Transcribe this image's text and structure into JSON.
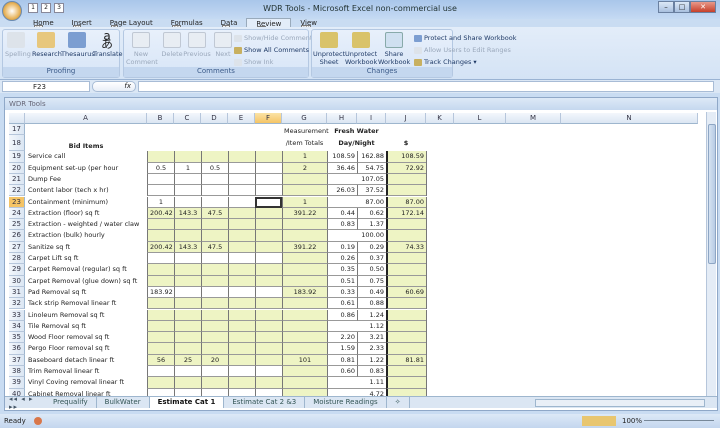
{
  "window": {
    "title": "WDR Tools - Microsoft Excel non-commercial use",
    "qat_keys": [
      "1",
      "2",
      "3"
    ],
    "office_key": "F"
  },
  "ribbon": {
    "tabs": [
      {
        "label": "Home",
        "key": "H"
      },
      {
        "label": "Insert",
        "key": "N"
      },
      {
        "label": "Page Layout",
        "key": "P"
      },
      {
        "label": "Formulas",
        "key": "M"
      },
      {
        "label": "Data",
        "key": "A"
      },
      {
        "label": "Review",
        "key": "R"
      },
      {
        "label": "View",
        "key": "W"
      }
    ],
    "active_tab": "Review",
    "groups": {
      "proofing": {
        "label": "Proofing",
        "buttons": [
          "Spelling",
          "Research",
          "Thesaurus",
          "Translate"
        ]
      },
      "comments": {
        "label": "Comments",
        "buttons": [
          "New Comment",
          "Delete",
          "Previous",
          "Next"
        ],
        "small": [
          "Show/Hide Comment",
          "Show All Comments",
          "Show Ink"
        ]
      },
      "changes": {
        "label": "Changes",
        "buttons": [
          "Unprotect Sheet",
          "Unprotect Workbook",
          "Share Workbook"
        ],
        "small": [
          "Protect and Share Workbook",
          "Allow Users to Edit Ranges",
          "Track Changes"
        ]
      }
    }
  },
  "formula_bar": {
    "name_box": "F23",
    "fx": "fx",
    "value": ""
  },
  "workbook": {
    "title": "WDR Tools",
    "columns": [
      "A",
      "B",
      "C",
      "D",
      "E",
      "F",
      "G",
      "H",
      "I",
      "J",
      "K",
      "L",
      "M",
      "N"
    ],
    "selected_cell": "F23",
    "headers": {
      "bid_items": "Bid Items",
      "measurement": "Measurement",
      "item_totals": "/Item Totals",
      "fresh_water": "Fresh Water",
      "day_night": "Day/Night",
      "dollar": "$"
    },
    "rows": [
      {
        "n": "17"
      },
      {
        "n": "18"
      },
      {
        "n": "19",
        "a": "Service call",
        "g": "1",
        "h": "108.59",
        "i": "162.88",
        "j": "108.59",
        "green": true
      },
      {
        "n": "20",
        "a": "Equipment set-up (per hour",
        "b": "0.5",
        "c": "1",
        "d": "0.5",
        "g": "2",
        "h": "36.46",
        "i": "54.75",
        "j": "72.92"
      },
      {
        "n": "21",
        "a": "Dump Fee",
        "i": "107.05",
        "merge": true
      },
      {
        "n": "22",
        "a": "Content labor (tech x hr)",
        "h": "26.03",
        "i": "37.52"
      },
      {
        "n": "23",
        "a": "Containment (minimum)",
        "b": "1",
        "g": "1",
        "i": "87.00",
        "j": "87.00",
        "merge": true
      },
      {
        "n": "24",
        "a": "Extraction (floor) sq ft",
        "b": "200.42",
        "c": "143.3",
        "d": "47.5",
        "g": "391.22",
        "h": "0.44",
        "i": "0.62",
        "j": "172.14",
        "green": true
      },
      {
        "n": "25",
        "a": "Extraction - weighted / water claw",
        "h": "0.83",
        "i": "1.37",
        "green": true
      },
      {
        "n": "26",
        "a": "Extraction (bulk) hourly",
        "i": "100.00",
        "merge": true,
        "green": true
      },
      {
        "n": "27",
        "a": "Sanitize  sq ft",
        "b": "200.42",
        "c": "143.3",
        "d": "47.5",
        "g": "391.22",
        "h": "0.19",
        "i": "0.29",
        "j": "74.33",
        "green": true
      },
      {
        "n": "28",
        "a": "Carpet Lift  sq ft",
        "h": "0.26",
        "i": "0.37"
      },
      {
        "n": "29",
        "a": "Carpet Removal (regular) sq ft",
        "h": "0.35",
        "i": "0.50",
        "green": true
      },
      {
        "n": "30",
        "a": "Carpet Removal (glue down) sq ft",
        "h": "0.51",
        "i": "0.75",
        "green": true
      },
      {
        "n": "31",
        "a": "Pad Removal  sq ft",
        "b": "183.92",
        "g": "183.92",
        "h": "0.33",
        "i": "0.49",
        "j": "60.69"
      },
      {
        "n": "32",
        "a": "Tack strip Removal  linear ft",
        "h": "0.61",
        "i": "0.88",
        "green": true
      },
      {
        "n": "33",
        "a": "Linoleum Removal  sq ft",
        "h": "0.86",
        "i": "1.24",
        "green": true
      },
      {
        "n": "34",
        "a": "Tile Removal  sq ft",
        "i": "1.12",
        "merge": true,
        "green": true
      },
      {
        "n": "35",
        "a": "Wood Floor removal  sq ft",
        "h": "2.20",
        "i": "3.21",
        "green": true
      },
      {
        "n": "36",
        "a": "Pergo Floor removal  sq ft",
        "h": "1.59",
        "i": "2.33",
        "green": true
      },
      {
        "n": "37",
        "a": "Baseboard detach  linear ft",
        "b": "56",
        "c": "25",
        "d": "20",
        "g": "101",
        "h": "0.81",
        "i": "1.22",
        "j": "81.81",
        "green": true
      },
      {
        "n": "38",
        "a": "Trim Removal  linear ft",
        "h": "0.60",
        "i": "0.83"
      },
      {
        "n": "39",
        "a": "Vinyl Coving removal  linear ft",
        "i": "1.11",
        "merge": true,
        "green": true
      },
      {
        "n": "40",
        "a": "Cabinet Removal  linear ft",
        "i": "4.72",
        "merge": true
      }
    ],
    "sheet_tabs": [
      "Prequalify",
      "BulkWater",
      "Estimate Cat 1",
      "Estimate Cat 2 &3",
      "Moisture Readings"
    ],
    "active_sheet": "Estimate Cat 1",
    "fill_color": "#eef4c4"
  },
  "status": {
    "text": "Ready",
    "zoom": "100%"
  }
}
